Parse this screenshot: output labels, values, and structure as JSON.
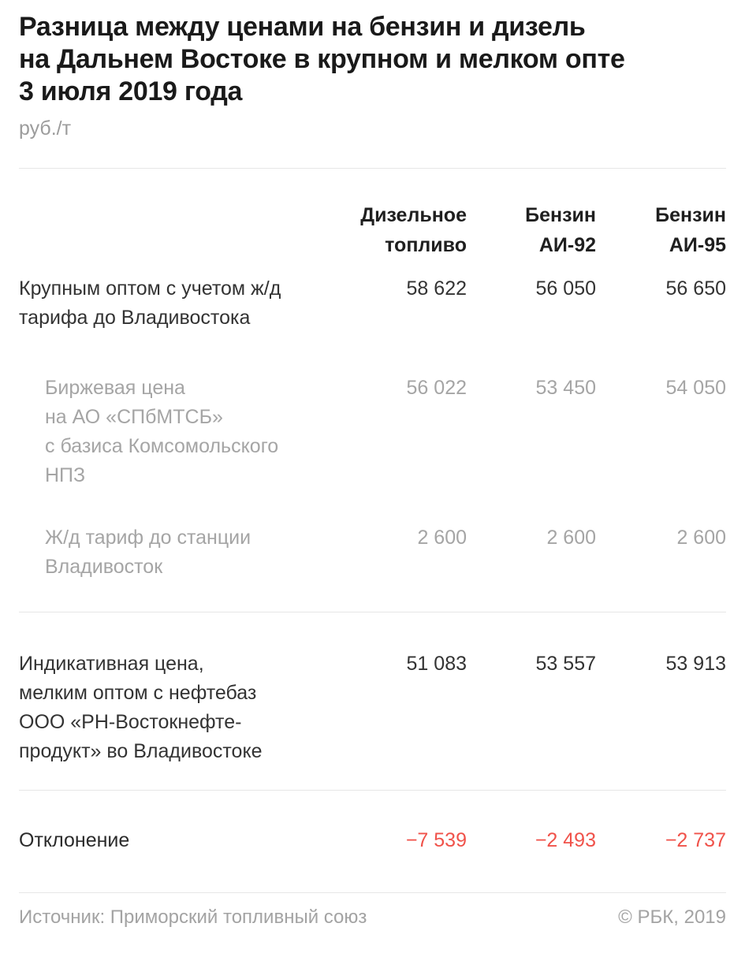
{
  "header": {
    "title": "Разница между ценами на бензин и дизель\nна Дальнем Востоке в крупном и мелком опте\n3 июля 2019 года",
    "unit": "руб./т"
  },
  "table": {
    "columns": [
      "Дизельное\nтопливо",
      "Бензин\nАИ-92",
      "Бензин\nАИ-95"
    ],
    "rows": [
      {
        "label": "Крупным оптом с учетом ж/д\nтарифа до Владивостока",
        "values": [
          "58 622",
          "56 050",
          "56 650"
        ]
      },
      {
        "label": "Биржевая цена\nна АО «СПбМТСБ»\nс базиса Комсомольского\nНПЗ",
        "values": [
          "56 022",
          "53 450",
          "54 050"
        ]
      },
      {
        "label": "Ж/д тариф до станции\nВладивосток",
        "values": [
          "2 600",
          "2 600",
          "2 600"
        ]
      },
      {
        "label": "Индикативная цена,\nмелким оптом с нефтебаз\nООО «РН-Востокнефте-\nпродукт» во Владивостоке",
        "values": [
          "51 083",
          "53 557",
          "53 913"
        ]
      },
      {
        "label": "Отклонение",
        "values": [
          "−7 539",
          "−2 493",
          "−2 737"
        ]
      }
    ]
  },
  "footer": {
    "source": "Источник: Приморский топливный союз",
    "copyright": "© РБК, 2019"
  },
  "colors": {
    "negative_value": "#f0524a",
    "text_dark": "#333333",
    "text_muted": "#a5a5a5",
    "divider": "#e6e6e6"
  },
  "chart_data": {
    "type": "table",
    "title": "Разница между ценами на бензин и дизель на Дальнем Востоке в крупном и мелком опте 3 июля 2019 года",
    "unit": "руб./т",
    "columns": [
      "Дизельное топливо",
      "Бензин АИ-92",
      "Бензин АИ-95"
    ],
    "rows": [
      {
        "label": "Крупным оптом с учетом ж/д тарифа до Владивостока",
        "values": [
          58622,
          56050,
          56650
        ]
      },
      {
        "label": "Биржевая цена на АО «СПбМТСБ» с базиса Комсомольского НПЗ",
        "values": [
          56022,
          53450,
          54050
        ]
      },
      {
        "label": "Ж/д тариф до станции Владивосток",
        "values": [
          2600,
          2600,
          2600
        ]
      },
      {
        "label": "Индикативная цена, мелким оптом с нефтебаз ООО «РН-Востокнефтепродукт» во Владивостоке",
        "values": [
          51083,
          53557,
          53913
        ]
      },
      {
        "label": "Отклонение",
        "values": [
          -7539,
          -2493,
          -2737
        ]
      }
    ],
    "source": "Приморский топливный союз",
    "publisher": "РБК, 2019"
  }
}
